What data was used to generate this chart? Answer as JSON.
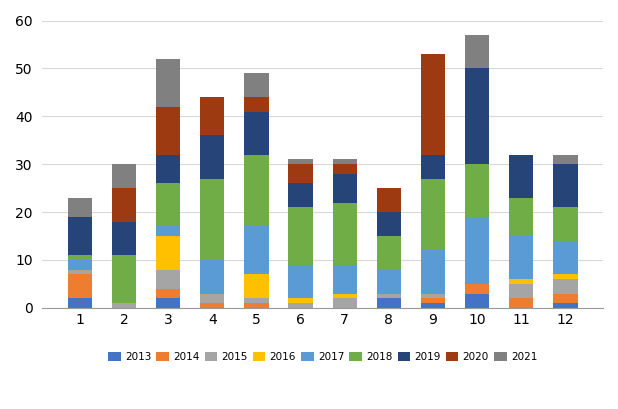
{
  "months": [
    1,
    2,
    3,
    4,
    5,
    6,
    7,
    8,
    9,
    10,
    11,
    12
  ],
  "years": [
    "2013",
    "2014",
    "2015",
    "2016",
    "2017",
    "2018",
    "2019",
    "2020",
    "2021"
  ],
  "colors": {
    "2013": "#4472C4",
    "2014": "#ED7D31",
    "2015": "#A5A5A5",
    "2016": "#FFC000",
    "2017": "#5B9BD5",
    "2018": "#70AD47",
    "2019": "#264478",
    "2020": "#9E3A12",
    "2021": "#808080"
  },
  "data": {
    "2013": [
      2,
      0,
      2,
      0,
      0,
      0,
      0,
      2,
      1,
      3,
      0,
      1
    ],
    "2014": [
      5,
      0,
      2,
      1,
      1,
      0,
      0,
      0,
      1,
      2,
      2,
      2
    ],
    "2015": [
      1,
      1,
      4,
      2,
      1,
      1,
      2,
      1,
      1,
      0,
      3,
      3
    ],
    "2016": [
      0,
      0,
      7,
      0,
      5,
      1,
      1,
      0,
      0,
      0,
      1,
      1
    ],
    "2017": [
      2,
      0,
      2,
      7,
      10,
      7,
      6,
      5,
      9,
      14,
      9,
      7
    ],
    "2018": [
      1,
      10,
      9,
      17,
      15,
      12,
      13,
      7,
      15,
      11,
      8,
      7
    ],
    "2019": [
      8,
      7,
      6,
      9,
      9,
      5,
      6,
      5,
      5,
      20,
      9,
      9
    ],
    "2020": [
      0,
      7,
      10,
      8,
      3,
      4,
      2,
      5,
      21,
      0,
      0,
      0
    ],
    "2021": [
      4,
      5,
      10,
      0,
      5,
      1,
      1,
      0,
      0,
      7,
      0,
      2
    ]
  },
  "ylim": [
    0,
    60
  ],
  "yticks": [
    0,
    10,
    20,
    30,
    40,
    50,
    60
  ],
  "background_color": "#ffffff",
  "grid_color": "#d9d9d9"
}
